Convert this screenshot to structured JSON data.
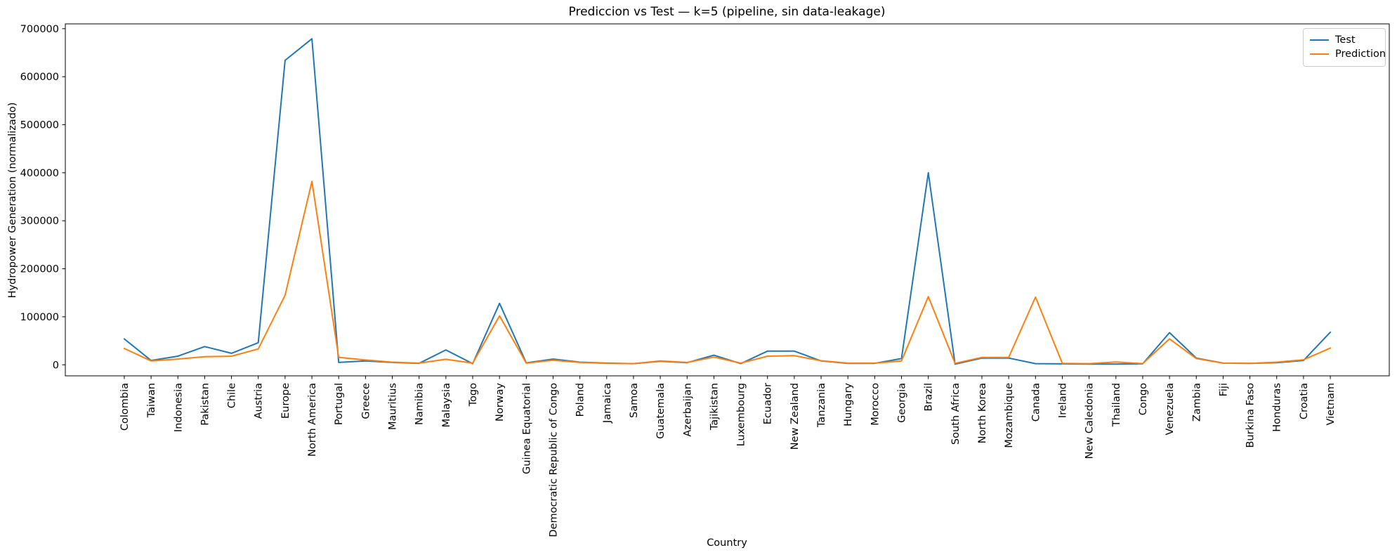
{
  "page": {
    "background": "#ffffff",
    "frame_color": "#000000"
  },
  "chart_data": {
    "type": "line",
    "title": "Prediccion vs Test — k=5 (pipeline, sin data-leakage)",
    "xlabel": "Country",
    "ylabel": "Hydropower Generation (normalizado)",
    "grid": false,
    "legend_position": "upper right",
    "x_tick_rotation": 90,
    "y_ticks": [
      0,
      100000,
      200000,
      300000,
      400000,
      500000,
      600000,
      700000
    ],
    "ylim": [
      -23000,
      710000
    ],
    "categories": [
      "Colombia",
      "Taiwan",
      "Indonesia",
      "Pakistan",
      "Chile",
      "Austria",
      "Europe",
      "North America",
      "Portugal",
      "Greece",
      "Mauritius",
      "Namibia",
      "Malaysia",
      "Togo",
      "Norway",
      "Guinea Equatorial",
      "Democratic Republic of Congo",
      "Poland",
      "Jamaica",
      "Samoa",
      "Guatemala",
      "Azerbaijan",
      "Tajikistan",
      "Luxembourg",
      "Ecuador",
      "New Zealand",
      "Tanzania",
      "Hungary",
      "Morocco",
      "Georgia",
      "Brazil",
      "South Africa",
      "North Korea",
      "Mozambique",
      "Canada",
      "Ireland",
      "New Caledonia",
      "Thailand",
      "Congo",
      "Venezuela",
      "Zambia",
      "Fiji",
      "Burkina Faso",
      "Honduras",
      "Croatia",
      "Vietnam"
    ],
    "series": [
      {
        "name": "Test",
        "color": "#1f77b4",
        "values": [
          54000,
          9000,
          18000,
          38000,
          24000,
          46000,
          634000,
          679000,
          5000,
          8000,
          5000,
          3000,
          31000,
          2500,
          128000,
          4000,
          12000,
          5500,
          3500,
          2500,
          7500,
          4500,
          20000,
          2500,
          28500,
          28500,
          8000,
          3000,
          3000,
          13000,
          400000,
          1500,
          14000,
          14000,
          2500,
          2000,
          1500,
          1500,
          2000,
          67000,
          14000,
          3500,
          3000,
          4500,
          9000,
          68000
        ]
      },
      {
        "name": "Prediction",
        "color": "#ff7f0e",
        "values": [
          34000,
          8000,
          12000,
          17000,
          18000,
          33000,
          145000,
          382000,
          15500,
          10000,
          5500,
          3500,
          11500,
          3500,
          102000,
          3500,
          9500,
          5000,
          3000,
          2500,
          8000,
          5000,
          16000,
          3500,
          18000,
          19000,
          8500,
          3500,
          3500,
          8000,
          142000,
          3000,
          15500,
          15500,
          141000,
          3000,
          2500,
          6000,
          2500,
          54000,
          13000,
          3500,
          3000,
          5500,
          10500,
          35000
        ]
      }
    ]
  }
}
